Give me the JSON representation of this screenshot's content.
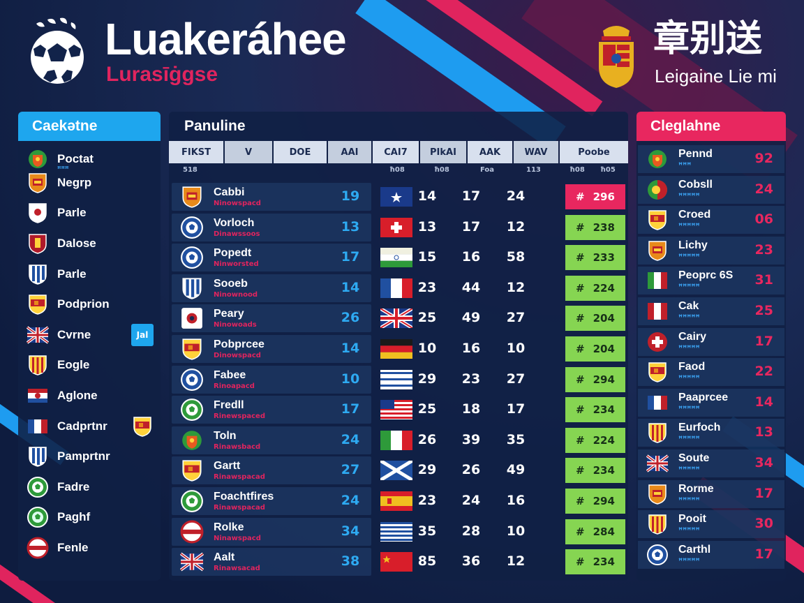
{
  "header": {
    "title": "Luakeráhee",
    "subtitle": "Lurasīġgse",
    "right_title": "章别送",
    "right_subtitle": "Leigaine Lie mi"
  },
  "left_panel": {
    "title": "Caekətne",
    "items": [
      {
        "label": "Poctat",
        "sub": "ꟸꟸꟸ",
        "icon": "green-crest-icon"
      },
      {
        "label": "Negrp",
        "icon": "orange-crest-icon"
      },
      {
        "label": "Parle",
        "icon": "white-shield-icon"
      },
      {
        "label": "Dalose",
        "icon": "red-shield-icon"
      },
      {
        "label": "Parle",
        "icon": "striped-shield-icon"
      },
      {
        "label": "Podprion",
        "icon": "spain-crest-icon"
      },
      {
        "label": "Cvrne",
        "icon": "union-jack-icon",
        "chip": "Jal"
      },
      {
        "label": "Eogle",
        "icon": "catalan-crest-icon"
      },
      {
        "label": "Aglone",
        "icon": "blue-red-crest-icon"
      },
      {
        "label": "Cadprtnr",
        "icon": "french-flag-icon",
        "chip_icon": "spain-shield-icon"
      },
      {
        "label": "Pamprtnr",
        "icon": "blue-stripe-shield-icon"
      },
      {
        "label": "Fadre",
        "icon": "green-ball-icon"
      },
      {
        "label": "Paghf",
        "icon": "green-white-ball-icon"
      },
      {
        "label": "Fenle",
        "icon": "red-white-ball-icon"
      }
    ]
  },
  "center_panel": {
    "title": "Panuline",
    "columns": [
      "FIKST",
      "V",
      "DOE",
      "AAI",
      "CAI7",
      "PIkAI",
      "AAK",
      "WAV",
      "Poobe"
    ],
    "subheads": [
      "518",
      "ħ08",
      "ħ08",
      "Foa",
      "113",
      "ħ08",
      "ħ05"
    ],
    "rows": [
      {
        "team": "Cabbi",
        "sub": "Ninowspacd",
        "v": "19",
        "flag": "flag-star-blue",
        "a": "14",
        "b": "17",
        "c": "24",
        "pts": "296",
        "badge": "orange-crest-icon",
        "highlight": true
      },
      {
        "team": "Vorloch",
        "sub": "Dinawssoos",
        "v": "13",
        "flag": "flag-swiss",
        "a": "13",
        "b": "17",
        "c": "12",
        "pts": "238",
        "badge": "blue-ball-icon"
      },
      {
        "team": "Popedt",
        "sub": "Ninworsted",
        "v": "17",
        "flag": "flag-india",
        "a": "15",
        "b": "16",
        "c": "58",
        "pts": "233",
        "badge": "blue-ball-icon"
      },
      {
        "team": "Sooeb",
        "sub": "Ninownood",
        "v": "14",
        "flag": "flag-france",
        "a": "23",
        "b": "44",
        "c": "12",
        "pts": "224",
        "badge": "stripe-shield-icon"
      },
      {
        "team": "Peary",
        "sub": "Ninowoads",
        "v": "26",
        "flag": "flag-uk",
        "a": "25",
        "b": "49",
        "c": "27",
        "pts": "204",
        "badge": "white-red-crest-icon"
      },
      {
        "team": "Pobprcee",
        "sub": "Dinowspacd",
        "v": "14",
        "flag": "flag-germany",
        "a": "10",
        "b": "16",
        "c": "10",
        "pts": "204",
        "badge": "spain-crest-icon"
      },
      {
        "team": "Fabee",
        "sub": "Rinoapacd",
        "v": "10",
        "flag": "flag-stripes-blue",
        "a": "29",
        "b": "23",
        "c": "27",
        "pts": "294",
        "badge": "blue-ball-icon"
      },
      {
        "team": "Fredll",
        "sub": "Rinewspaced",
        "v": "17",
        "flag": "flag-usa",
        "a": "25",
        "b": "18",
        "c": "17",
        "pts": "234",
        "badge": "green-ball-icon"
      },
      {
        "team": "Toln",
        "sub": "Rinawsbacd",
        "v": "24",
        "flag": "flag-italy",
        "a": "26",
        "b": "39",
        "c": "35",
        "pts": "224",
        "badge": "green-crest-icon"
      },
      {
        "team": "Gartt",
        "sub": "Rinawspacad",
        "v": "27",
        "flag": "flag-scotland",
        "a": "29",
        "b": "26",
        "c": "49",
        "pts": "234",
        "badge": "spain-crest-icon"
      },
      {
        "team": "Foachtfires",
        "sub": "Rinawspacad",
        "v": "24",
        "flag": "flag-spain",
        "a": "23",
        "b": "24",
        "c": "16",
        "pts": "294",
        "badge": "green-ball-icon"
      },
      {
        "team": "Rolke",
        "sub": "Ninawspacd",
        "v": "34",
        "flag": "flag-greece",
        "a": "35",
        "b": "28",
        "c": "10",
        "pts": "284",
        "badge": "red-white-ball-icon"
      },
      {
        "team": "Aalt",
        "sub": "Rinawsacad",
        "v": "38",
        "flag": "flag-china",
        "a": "85",
        "b": "36",
        "c": "12",
        "pts": "234",
        "badge": "union-jack-icon"
      }
    ]
  },
  "right_panel": {
    "title": "Cleglahne",
    "items": [
      {
        "label": "Pennd",
        "sub": "ꟸꟸꟸ",
        "value": "92",
        "icon": "green-crest-icon"
      },
      {
        "label": "Cobsll",
        "sub": "ꟸꟸꟸꟸꟸ",
        "value": "24",
        "icon": "portugal-crest-icon"
      },
      {
        "label": "Croed",
        "sub": "ꟸꟸꟸꟸꟸ",
        "value": "06",
        "icon": "spain-crest-icon"
      },
      {
        "label": "Lichy",
        "sub": "ꟸꟸꟸꟸꟸ",
        "value": "23",
        "icon": "orange-crest-icon"
      },
      {
        "label": "Peoprc 6S",
        "sub": "ꟸꟸꟸꟸꟸ",
        "value": "31",
        "icon": "italy-flag-icon"
      },
      {
        "label": "Cak",
        "sub": "ꟸꟸꟸꟸꟸ",
        "value": "25",
        "icon": "red-white-flag-icon"
      },
      {
        "label": "Cairy",
        "sub": "ꟸꟸꟸꟸꟸ",
        "value": "17",
        "icon": "swiss-crest-icon"
      },
      {
        "label": "Faod",
        "sub": "ꟸꟸꟸꟸꟸ",
        "value": "22",
        "icon": "spain-crest-icon"
      },
      {
        "label": "Paaprcee",
        "sub": "ꟸꟸꟸꟸꟸ",
        "value": "14",
        "icon": "french-flag-icon"
      },
      {
        "label": "Eurfoch",
        "sub": "ꟸꟸꟸꟸꟸ",
        "value": "13",
        "icon": "catalan-crest-icon"
      },
      {
        "label": "Soute",
        "sub": "ꟸꟸꟸꟸꟸ",
        "value": "34",
        "icon": "union-jack-icon"
      },
      {
        "label": "Rorme",
        "sub": "ꟸꟸꟸꟸꟸ",
        "value": "17",
        "icon": "orange-crest-icon"
      },
      {
        "label": "Pooit",
        "sub": "ꟸꟸꟸꟸꟸ",
        "value": "30",
        "icon": "catalan-crest-icon"
      },
      {
        "label": "Carthl",
        "sub": "ꟸꟸꟸꟸꟸ",
        "value": "17",
        "icon": "blue-ball-icon"
      }
    ]
  },
  "colors": {
    "accent_blue": "#1ea6ee",
    "accent_pink": "#e8275f",
    "points_green": "#86d552",
    "background": "#12234a"
  }
}
